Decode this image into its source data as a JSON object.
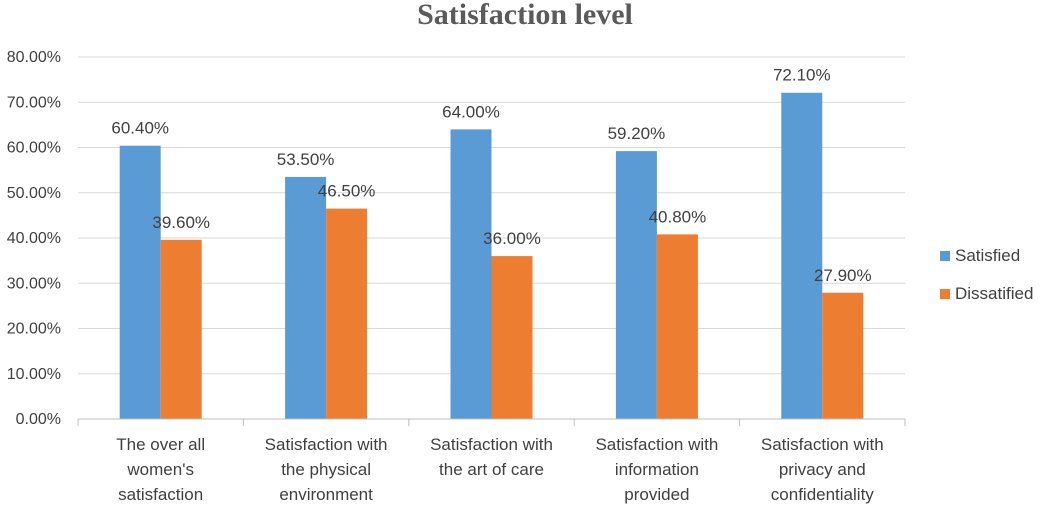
{
  "chart_data": {
    "type": "bar",
    "title": "Satisfaction level",
    "xlabel": "",
    "ylabel": "",
    "ylim": [
      0,
      80
    ],
    "ytick_step": 10,
    "ytick_labels": [
      "0.00%",
      "10.00%",
      "20.00%",
      "30.00%",
      "40.00%",
      "50.00%",
      "60.00%",
      "70.00%",
      "80.00%"
    ],
    "grid": true,
    "legend_position": "right",
    "categories": [
      [
        "The over all",
        "women's",
        "satisfaction"
      ],
      [
        "Satisfaction with",
        "the physical",
        "environment"
      ],
      [
        "Satisfaction with",
        "the art of care"
      ],
      [
        "Satisfaction with",
        "information",
        "provided"
      ],
      [
        "Satisfaction with",
        "privacy and",
        "confidentiality"
      ]
    ],
    "series": [
      {
        "name": "Satisfied",
        "color": "#5b9bd5",
        "values": [
          60.4,
          53.5,
          64.0,
          59.2,
          72.1
        ],
        "labels": [
          "60.40%",
          "53.50%",
          "64.00%",
          "59.20%",
          "72.10%"
        ]
      },
      {
        "name": "Dissatified",
        "color": "#ed7d31",
        "values": [
          39.6,
          46.5,
          36.0,
          40.8,
          27.9
        ],
        "labels": [
          "39.60%",
          "46.50%",
          "36.00%",
          "40.80%",
          "27.90%"
        ]
      }
    ]
  }
}
